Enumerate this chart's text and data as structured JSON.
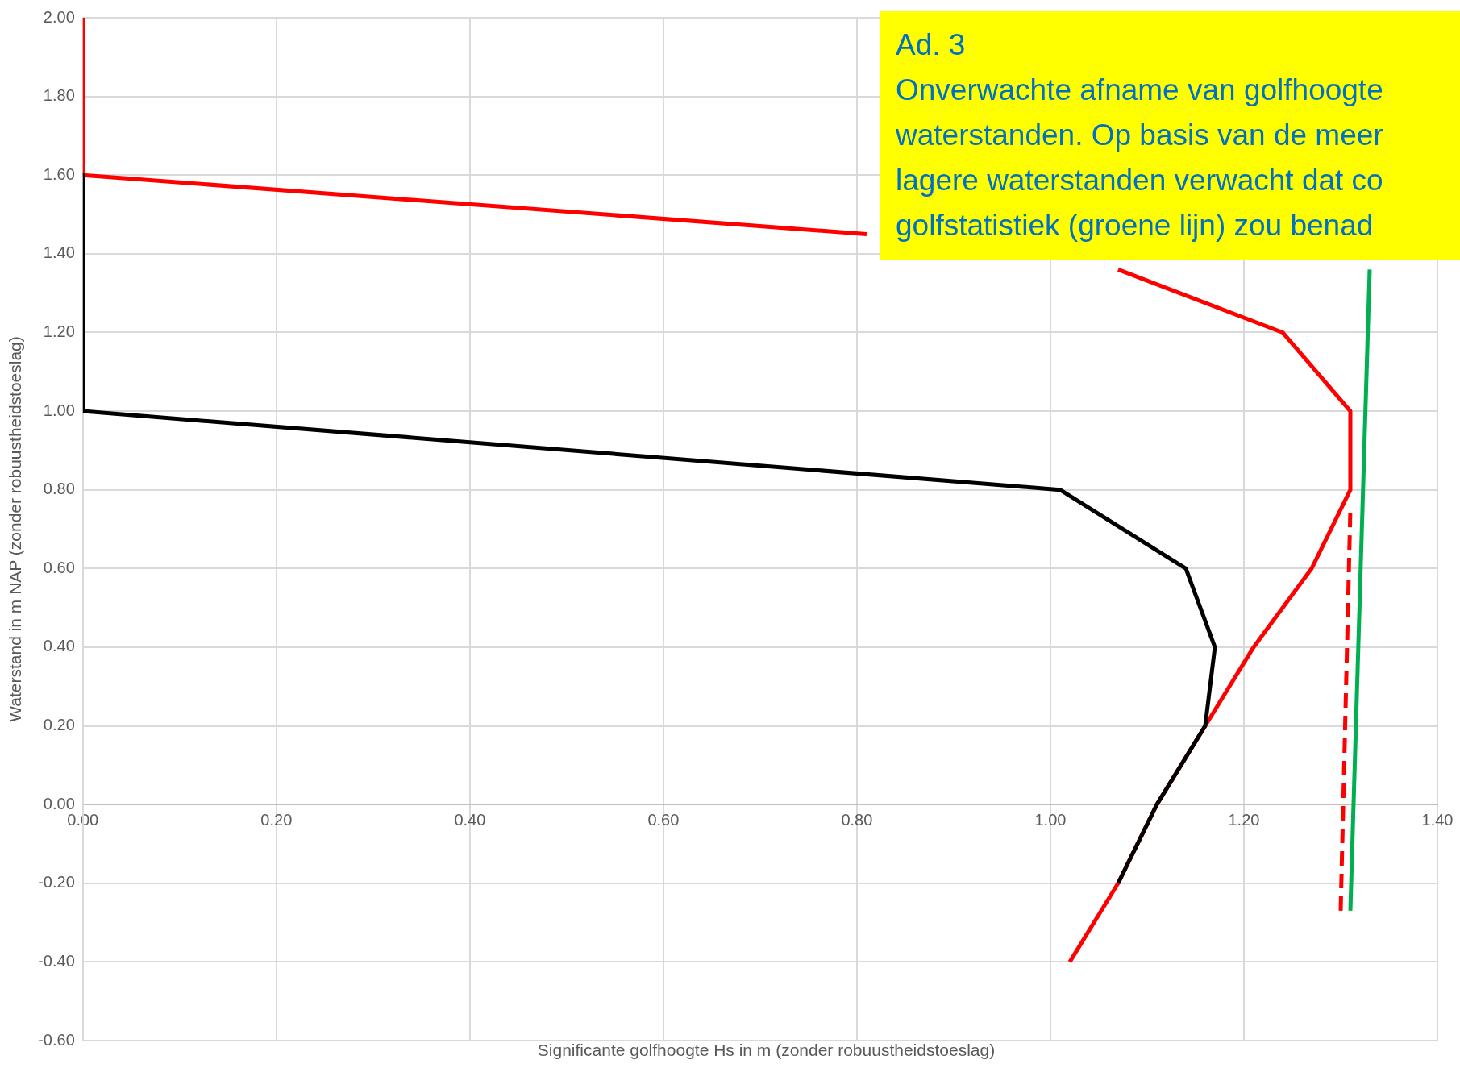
{
  "chart_data": {
    "type": "line",
    "xlabel": "Significante golfhoogte Hs in m (zonder robuustheidstoeslag)",
    "ylabel": "Waterstand in m NAP (zonder robuustheidstoeslag)",
    "xlim": [
      0,
      1.4
    ],
    "xticks": [
      {
        "value": 0,
        "label": "0.00"
      },
      {
        "value": 0.2,
        "label": "0.20"
      },
      {
        "value": 0.4,
        "label": "0.40"
      },
      {
        "value": 0.6,
        "label": "0.60"
      },
      {
        "value": 0.8,
        "label": "0.80"
      },
      {
        "value": 1,
        "label": "1.00"
      },
      {
        "value": 1.2,
        "label": "1.20"
      },
      {
        "value": 1.4,
        "label": "1.40"
      }
    ],
    "ylim": [
      -0.6,
      2
    ],
    "yticks": [
      {
        "value": -0.6,
        "label": "-0.60"
      },
      {
        "value": -0.4,
        "label": "-0.40"
      },
      {
        "value": -0.2,
        "label": "-0.20"
      },
      {
        "value": 0,
        "label": "0.00"
      },
      {
        "value": 0.2,
        "label": "0.20"
      },
      {
        "value": 0.4,
        "label": "0.40"
      },
      {
        "value": 0.6,
        "label": "0.60"
      },
      {
        "value": 0.8,
        "label": "0.80"
      },
      {
        "value": 1,
        "label": "1.00"
      },
      {
        "value": 1.2,
        "label": "1.20"
      },
      {
        "value": 1.4,
        "label": "1.40"
      },
      {
        "value": 1.6,
        "label": "1.60"
      },
      {
        "value": 1.8,
        "label": "1.80"
      },
      {
        "value": 2,
        "label": "2.00"
      }
    ],
    "grid": true,
    "legend": false,
    "marker": "none",
    "series": [
      {
        "color": "#000000",
        "x": [
          0,
          0,
          1.01,
          1.14,
          1.17,
          1.16,
          1.11,
          1.07
        ],
        "values": [
          1.6,
          1.0,
          0.8,
          0.6,
          0.4,
          0.2,
          0.0,
          -0.2
        ]
      },
      {
        "color": "#ff0000",
        "x": [
          0,
          0,
          0.81,
          null,
          1.07,
          1.24,
          1.31,
          1.31,
          1.27,
          1.21,
          1.16,
          1.11,
          1.07,
          1.02
        ],
        "values": [
          2.0,
          1.6,
          1.45,
          null,
          1.36,
          1.2,
          1.0,
          0.8,
          0.6,
          0.4,
          0.2,
          0.0,
          -0.2,
          -0.4
        ]
      },
      {
        "color": "#00b050",
        "x": [
          1.31,
          1.33
        ],
        "values": [
          -0.27,
          1.36
        ]
      },
      {
        "color": "#ff0000",
        "line_style": "dashed",
        "x": [
          1.3,
          1.31
        ],
        "values": [
          -0.27,
          0.75
        ]
      }
    ],
    "annotations": [
      "Ad. 3",
      "Onverwachte afname van golfhoogte",
      "waterstanden. Op basis van de meer",
      "lagere waterstanden verwacht dat co",
      "golfstatistiek (groene lijn) zou benad"
    ]
  }
}
